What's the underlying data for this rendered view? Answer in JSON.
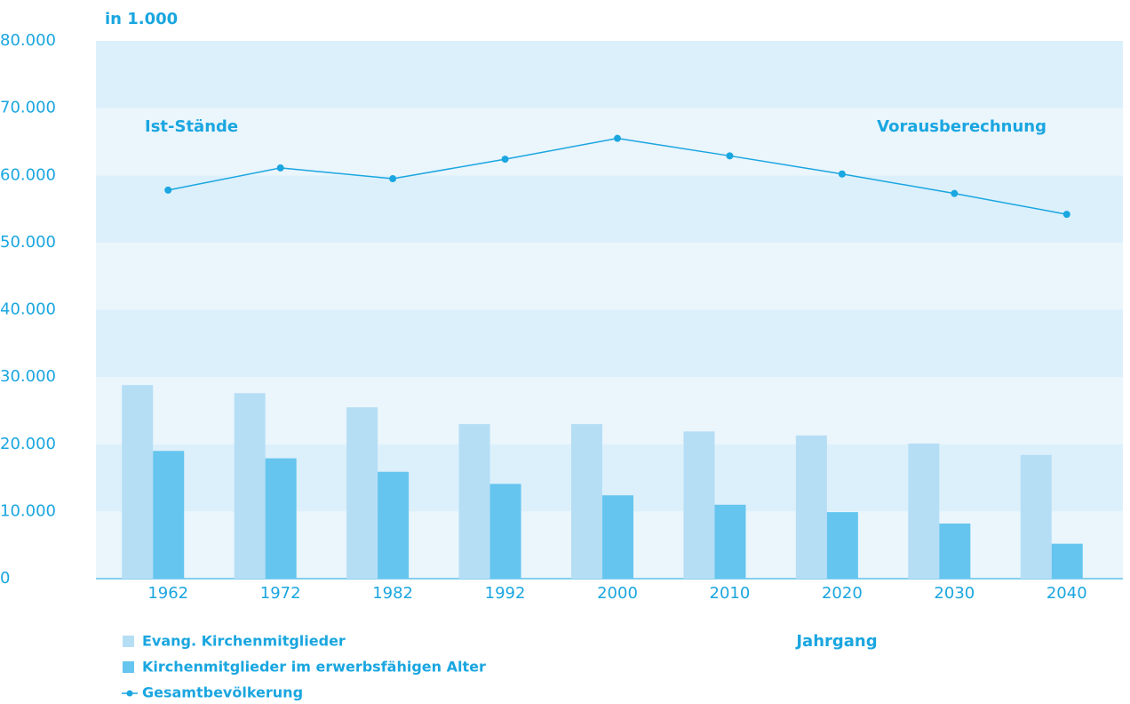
{
  "chart_data": {
    "type": "bar-line",
    "unit_label": "in 1.000",
    "annotations": [
      "Ist-Stände",
      "Vorausberechnung"
    ],
    "x_label": "Jahrgang",
    "categories": [
      "1962",
      "1972",
      "1982",
      "1992",
      "2000",
      "2010",
      "2020",
      "2030",
      "2040"
    ],
    "series": [
      {
        "name": "Evang. Kirchenmitglieder",
        "color": "#b5def5",
        "kind": "bar",
        "values": [
          28800,
          27600,
          25500,
          23000,
          23000,
          21900,
          21300,
          20100,
          18400
        ]
      },
      {
        "name": "Kirchenmitglieder im erwerbsfähigen Alter",
        "color": "#65c5ee",
        "kind": "bar",
        "values": [
          19000,
          17900,
          15900,
          14100,
          12400,
          11000,
          9900,
          8200,
          5200
        ]
      },
      {
        "name": "Gesamtbevölkerung",
        "color": "#1aa6e0",
        "kind": "line",
        "values": [
          57800,
          61100,
          59500,
          62400,
          65500,
          62900,
          60200,
          57300,
          54200
        ]
      }
    ],
    "ylim": [
      0,
      80000
    ],
    "yticks": [
      0,
      {
        "value": 10000,
        "label": "10.000"
      },
      {
        "value": 20000,
        "label": "20.000"
      },
      {
        "value": 30000,
        "label": "30.000"
      },
      {
        "value": 40000,
        "label": "40.000"
      },
      {
        "value": 50000,
        "label": "50.000"
      },
      {
        "value": 60000,
        "label": "60.000"
      },
      {
        "value": 70000,
        "label": "70.000"
      },
      {
        "value": 80000,
        "label": "80.000"
      }
    ],
    "band_colors": [
      "#eaf5fc",
      "#dcf0fb"
    ]
  }
}
